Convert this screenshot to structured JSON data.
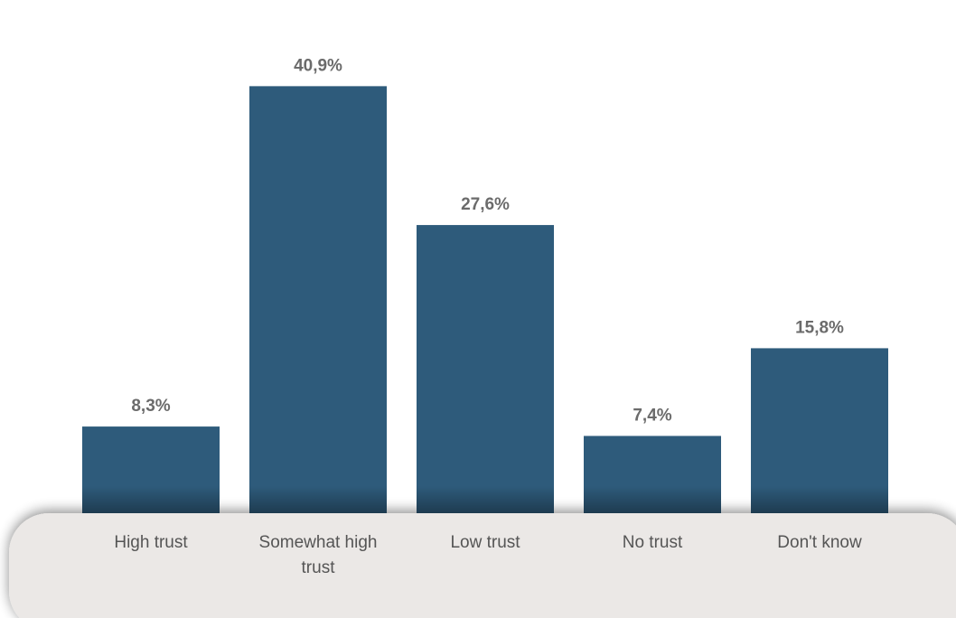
{
  "chart_data": {
    "type": "bar",
    "categories": [
      "High trust",
      "Somewhat high trust",
      "Low trust",
      "No trust",
      "Don't know"
    ],
    "category_lines": [
      [
        "High trust"
      ],
      [
        "Somewhat high",
        "trust"
      ],
      [
        "Low trust"
      ],
      [
        "No trust"
      ],
      [
        "Don't know"
      ]
    ],
    "values": [
      8.3,
      40.9,
      27.6,
      7.4,
      15.8
    ],
    "value_labels": [
      "8,3%",
      "40,9%",
      "27,6%",
      "7,4%",
      "15,8%"
    ],
    "ylim": [
      0,
      45
    ],
    "grid": false,
    "legend": "none",
    "colors": {
      "bar": "#2e5b7b",
      "base_panel": "#ebe8e6",
      "value_label": "#6b6b6b",
      "category_label": "#555555"
    }
  }
}
